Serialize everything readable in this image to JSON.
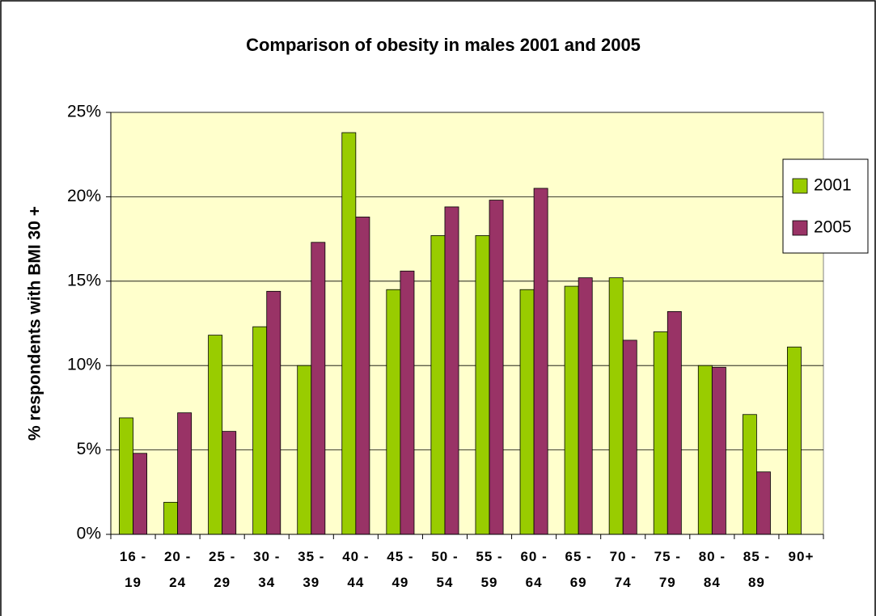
{
  "chart_data": {
    "type": "bar",
    "title": "Comparison of obesity in males 2001 and 2005",
    "y_label": "% respondents with BMI 30 +",
    "categories": [
      "16 - 19",
      "20 - 24",
      "25 - 29",
      "30 - 34",
      "35 - 39",
      "40 - 44",
      "45 - 49",
      "50 - 54",
      "55 - 59",
      "60 - 64",
      "65 - 69",
      "70 - 74",
      "75 - 79",
      "80 - 84",
      "85 - 89",
      "90+"
    ],
    "series": [
      {
        "name": "2001",
        "color": "#99cc00",
        "values": [
          6.9,
          1.9,
          11.8,
          12.3,
          10.0,
          23.8,
          14.5,
          17.7,
          17.7,
          14.5,
          14.7,
          15.2,
          12.0,
          10.0,
          7.1,
          11.1
        ]
      },
      {
        "name": "2005",
        "color": "#993366",
        "values": [
          4.8,
          7.2,
          6.1,
          14.4,
          17.3,
          18.8,
          15.6,
          19.4,
          19.8,
          20.5,
          15.2,
          11.5,
          13.2,
          9.9,
          3.7,
          null
        ]
      }
    ],
    "ylim": [
      0,
      25
    ],
    "yticks": [
      {
        "value": 0,
        "label": "0%"
      },
      {
        "value": 5,
        "label": "5%"
      },
      {
        "value": 10,
        "label": "10%"
      },
      {
        "value": 15,
        "label": "15%"
      },
      {
        "value": 20,
        "label": "20%"
      },
      {
        "value": 25,
        "label": "25%"
      }
    ],
    "grid": true,
    "legend": "right",
    "plot_background": "#ffffcc"
  }
}
